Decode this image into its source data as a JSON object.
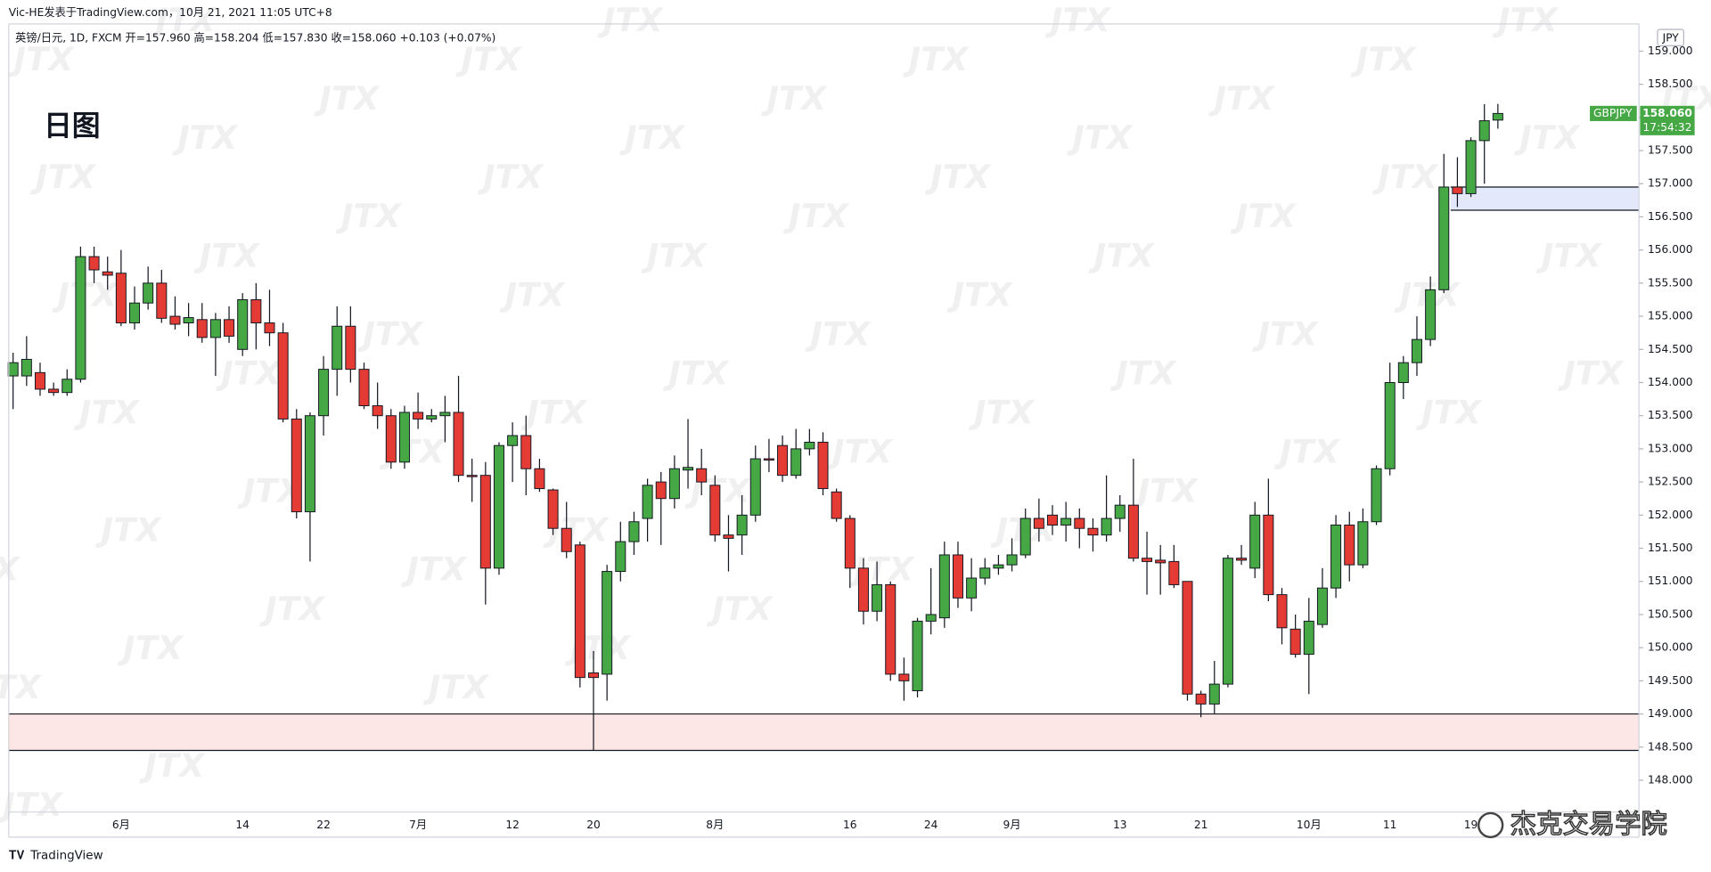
{
  "chart_data": {
    "type": "candlestick",
    "title": "日图",
    "source": "Vic-HE发表于TradingView.com，10月 21, 2021 11:05 UTC+8",
    "symbol_info": "英镑/日元, 1D, FXCM  开=157.960  高=158.204  低=157.830  收=158.060  +0.103 (+0.07%)",
    "currency": "JPY",
    "ticker": "GBPJPY",
    "last_price_label": "158.060",
    "countdown": "17:54:32",
    "watermark": "JTX",
    "footer": "TradingView",
    "brand": "杰克交易学院",
    "up_color": "#45a845",
    "down_color": "#e53b35",
    "categories": [
      null,
      null,
      null,
      null,
      null,
      null,
      null,
      null,
      "6月",
      null,
      null,
      null,
      null,
      null,
      null,
      null,
      null,
      "14",
      null,
      null,
      null,
      null,
      null,
      "22",
      null,
      null,
      null,
      null,
      null,
      null,
      "7月",
      null,
      null,
      null,
      null,
      null,
      null,
      "12",
      null,
      null,
      null,
      null,
      null,
      "20",
      null,
      null,
      null,
      null,
      null,
      null,
      null,
      null,
      "8月",
      null,
      null,
      null,
      null,
      null,
      null,
      null,
      null,
      null,
      "16",
      null,
      null,
      null,
      null,
      null,
      "24",
      null,
      null,
      null,
      null,
      null,
      "9月",
      null,
      null,
      null,
      null,
      null,
      null,
      null,
      "13",
      null,
      null,
      null,
      null,
      null,
      "21",
      null,
      null,
      null,
      null,
      null,
      null,
      null,
      "10月",
      null,
      null,
      null,
      null,
      null,
      "11",
      null,
      null,
      null,
      null,
      null,
      "19",
      null,
      null
    ],
    "open": [
      154.1,
      154.1,
      154.15,
      153.9,
      153.85,
      154.05,
      155.9,
      155.67,
      155.65,
      154.9,
      155.2,
      155.5,
      155.0,
      154.9,
      154.95,
      154.68,
      154.95,
      154.5,
      155.25,
      154.9,
      154.75,
      153.45,
      152.05,
      153.5,
      154.2,
      154.85,
      154.2,
      153.65,
      153.5,
      152.8,
      153.55,
      153.45,
      153.5,
      153.55,
      152.6,
      152.6,
      151.2,
      153.05,
      153.2,
      152.7,
      152.38,
      151.8,
      151.55,
      149.62,
      149.6,
      151.15,
      151.6,
      151.95,
      152.5,
      152.25,
      152.68,
      152.7,
      152.45,
      151.7,
      151.7,
      152.0,
      152.85,
      153.05,
      152.6,
      153.0,
      153.1,
      152.35,
      151.95,
      151.2,
      150.55,
      150.95,
      149.6,
      149.35,
      150.4,
      150.45,
      151.4,
      150.75,
      151.05,
      151.2,
      151.25,
      151.4,
      151.95,
      152.0,
      151.85,
      151.95,
      151.8,
      151.7,
      151.95,
      152.15,
      151.35,
      151.32,
      151.3,
      151.0,
      149.3,
      149.15,
      149.45,
      151.35,
      151.2,
      152.0,
      150.8,
      150.28,
      149.9,
      150.35,
      150.9,
      151.85,
      151.25,
      151.9,
      152.7,
      154.0,
      154.3,
      154.65,
      155.4,
      156.95,
      156.85,
      157.65,
      157.96
    ],
    "high": [
      154.45,
      154.7,
      154.3,
      154.0,
      154.2,
      156.05,
      156.05,
      155.9,
      156.0,
      155.45,
      155.75,
      155.7,
      155.3,
      155.2,
      155.2,
      155.05,
      155.15,
      155.35,
      155.5,
      155.4,
      154.9,
      153.6,
      153.55,
      154.4,
      155.15,
      155.15,
      154.3,
      154.0,
      153.6,
      153.65,
      153.85,
      153.6,
      153.8,
      154.1,
      152.85,
      152.8,
      153.1,
      153.4,
      153.5,
      152.85,
      152.4,
      152.2,
      151.6,
      149.95,
      151.25,
      151.9,
      152.05,
      152.55,
      152.65,
      152.9,
      153.45,
      153.0,
      152.6,
      152.0,
      152.3,
      153.05,
      153.15,
      153.2,
      153.3,
      153.3,
      153.25,
      152.4,
      152.0,
      151.35,
      151.3,
      151.0,
      149.85,
      150.45,
      151.2,
      151.6,
      151.6,
      151.35,
      151.35,
      151.4,
      151.65,
      152.1,
      152.25,
      152.15,
      152.2,
      152.1,
      151.95,
      152.6,
      152.3,
      152.85,
      151.75,
      151.55,
      151.55,
      151.0,
      149.35,
      149.8,
      151.4,
      151.55,
      152.2,
      152.55,
      150.9,
      150.5,
      150.75,
      151.2,
      152.0,
      152.05,
      152.1,
      152.75,
      154.3,
      154.4,
      155.0,
      155.6,
      157.45,
      157.4,
      157.7,
      158.2,
      158.204
    ],
    "low": [
      153.6,
      153.95,
      153.8,
      153.8,
      153.8,
      154.0,
      155.5,
      155.4,
      154.85,
      154.8,
      155.1,
      154.9,
      154.8,
      154.7,
      154.6,
      154.1,
      154.6,
      154.4,
      154.5,
      154.55,
      153.4,
      151.95,
      151.3,
      153.2,
      153.8,
      154.0,
      153.6,
      153.3,
      152.7,
      152.7,
      153.3,
      153.4,
      153.1,
      152.5,
      152.2,
      150.65,
      151.1,
      152.5,
      152.3,
      152.35,
      151.7,
      151.35,
      149.4,
      148.45,
      149.2,
      151.0,
      151.4,
      151.6,
      151.55,
      152.1,
      152.4,
      152.3,
      151.6,
      151.15,
      151.4,
      151.9,
      152.65,
      152.5,
      152.55,
      152.9,
      152.3,
      151.9,
      150.9,
      150.35,
      150.4,
      149.5,
      149.2,
      149.25,
      150.2,
      150.3,
      150.6,
      150.55,
      150.95,
      151.1,
      151.15,
      151.35,
      151.6,
      151.7,
      151.6,
      151.5,
      151.45,
      151.6,
      151.75,
      151.3,
      150.8,
      150.8,
      150.9,
      149.2,
      148.95,
      149.0,
      149.4,
      151.25,
      151.05,
      150.7,
      150.05,
      149.85,
      149.3,
      150.3,
      150.75,
      151.0,
      151.2,
      151.85,
      152.6,
      153.75,
      154.1,
      154.55,
      155.35,
      156.65,
      156.8,
      157.0,
      157.83
    ],
    "close": [
      154.3,
      154.35,
      153.9,
      153.85,
      154.05,
      155.9,
      155.7,
      155.62,
      154.9,
      155.2,
      155.5,
      154.97,
      154.88,
      154.98,
      154.68,
      154.95,
      154.7,
      155.25,
      154.9,
      154.75,
      153.45,
      152.05,
      153.5,
      154.2,
      154.85,
      154.2,
      153.65,
      153.5,
      152.8,
      153.55,
      153.45,
      153.5,
      153.55,
      152.6,
      152.58,
      151.2,
      153.05,
      153.2,
      152.7,
      152.4,
      151.8,
      151.45,
      149.55,
      149.55,
      151.15,
      151.6,
      151.9,
      152.45,
      152.25,
      152.7,
      152.72,
      152.5,
      151.7,
      151.65,
      152.0,
      152.85,
      152.83,
      152.6,
      153.0,
      153.1,
      152.4,
      151.95,
      151.2,
      150.55,
      150.95,
      149.6,
      149.5,
      150.4,
      150.5,
      151.4,
      150.75,
      151.05,
      151.2,
      151.25,
      151.4,
      151.95,
      151.8,
      151.85,
      151.95,
      151.8,
      151.7,
      151.95,
      152.15,
      151.35,
      151.3,
      151.28,
      150.95,
      149.3,
      149.15,
      149.45,
      151.35,
      151.32,
      152.0,
      150.8,
      150.3,
      149.9,
      150.4,
      150.9,
      151.85,
      151.25,
      151.9,
      152.7,
      154.0,
      154.3,
      154.65,
      155.4,
      156.95,
      156.85,
      157.65,
      157.95,
      158.06
    ],
    "zones": [
      {
        "from": 148.45,
        "to": 149.0,
        "color": "#fde6e6"
      },
      {
        "from": 156.6,
        "to": 156.95,
        "color": "#e3e9fb",
        "start_index": 107
      }
    ],
    "ylim": [
      147.52,
      159.41
    ],
    "yticks": [
      {
        "value": 148,
        "label": "148.000"
      },
      {
        "value": 148.5,
        "label": "148.500"
      },
      {
        "value": 149,
        "label": "149.000"
      },
      {
        "value": 149.5,
        "label": "149.500"
      },
      {
        "value": 150,
        "label": "150.000"
      },
      {
        "value": 150.5,
        "label": "150.500"
      },
      {
        "value": 151,
        "label": "151.000"
      },
      {
        "value": 151.5,
        "label": "151.500"
      },
      {
        "value": 152,
        "label": "152.000"
      },
      {
        "value": 152.5,
        "label": "152.500"
      },
      {
        "value": 153,
        "label": "153.000"
      },
      {
        "value": 153.5,
        "label": "153.500"
      },
      {
        "value": 154,
        "label": "154.000"
      },
      {
        "value": 154.5,
        "label": "154.500"
      },
      {
        "value": 155,
        "label": "155.000"
      },
      {
        "value": 155.5,
        "label": "155.500"
      },
      {
        "value": 156,
        "label": "156.000"
      },
      {
        "value": 156.5,
        "label": "156.500"
      },
      {
        "value": 157,
        "label": "157.000"
      },
      {
        "value": 157.5,
        "label": "157.500"
      },
      {
        "value": 158,
        "label": "158.000"
      },
      {
        "value": 158.5,
        "label": "158.500"
      },
      {
        "value": 159,
        "label": "159.000"
      }
    ],
    "grid": false
  }
}
